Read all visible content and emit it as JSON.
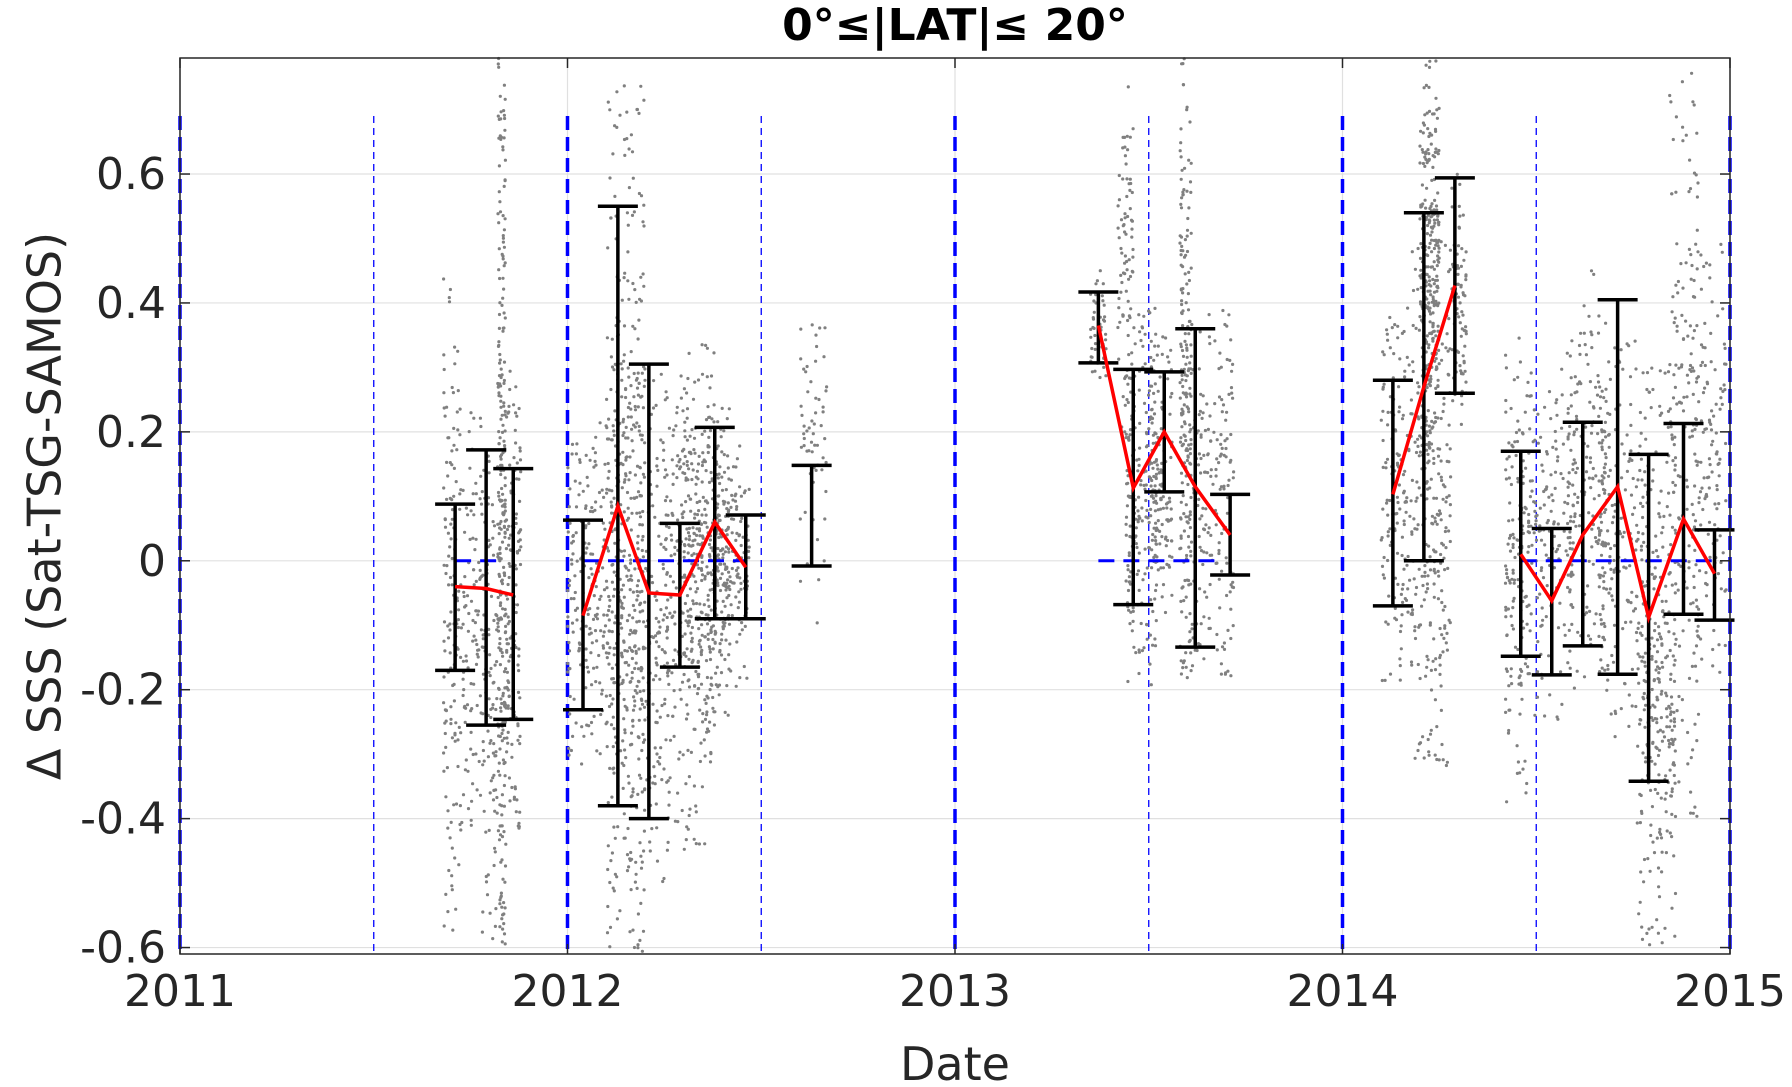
{
  "chart_data": {
    "type": "scatter",
    "title": "0°≤|LAT|≤ 20°",
    "xlabel": "Date",
    "ylabel": "Δ SSS (Sat-TSG-SAMOS)",
    "xlim": [
      2011,
      2015
    ],
    "ylim": [
      -0.61,
      0.78
    ],
    "x_ticks": [
      2011,
      2012,
      2013,
      2014,
      2015
    ],
    "x_tick_labels": [
      "2011",
      "2012",
      "2013",
      "2014",
      "2015"
    ],
    "y_ticks": [
      -0.6,
      -0.4,
      -0.2,
      0,
      0.2,
      0.4,
      0.6
    ],
    "y_tick_labels": [
      "-0.6",
      "-0.4",
      "-0.2",
      "0",
      "0.2",
      "0.4",
      "0.6"
    ],
    "grid": true,
    "colors": {
      "scatter": "#808080",
      "error_bars": "#000000",
      "mean_line": "#ff0000",
      "year_lines": "#0000ff",
      "zero_line": "#0000ff",
      "grid": "#e0e0e0",
      "axes": "#262626"
    },
    "year_boundaries": [
      2011,
      2012,
      2013,
      2014,
      2015
    ],
    "half_year_markers": [
      2011.5,
      2012.5,
      2013.5,
      2014.5
    ],
    "zero_reference_segments": [
      {
        "x0": 2011.71,
        "x1": 2011.83,
        "y": 0
      },
      {
        "x0": 2012.04,
        "x1": 2012.46,
        "y": 0
      },
      {
        "x0": 2013.37,
        "x1": 2013.67,
        "y": 0
      },
      {
        "x0": 2014.46,
        "x1": 2014.97,
        "y": 0
      }
    ],
    "scatter_bands": [
      {
        "x0": 2011.68,
        "x1": 2011.72,
        "ymin": -0.6,
        "ymax": 0.44,
        "density": 130
      },
      {
        "x0": 2011.72,
        "x1": 2011.78,
        "ymin": -0.42,
        "ymax": 0.25,
        "density": 110
      },
      {
        "x0": 2011.78,
        "x1": 2011.84,
        "ymin": -0.6,
        "ymax": 0.2,
        "density": 140
      },
      {
        "x0": 2011.82,
        "x1": 2011.84,
        "ymin": -0.6,
        "ymax": 0.78,
        "density": 220
      },
      {
        "x0": 2011.84,
        "x1": 2011.88,
        "ymin": -0.45,
        "ymax": 0.3,
        "density": 140
      },
      {
        "x0": 2012.0,
        "x1": 2012.14,
        "ymin": -0.32,
        "ymax": 0.22,
        "density": 240
      },
      {
        "x0": 2012.1,
        "x1": 2012.2,
        "ymin": -0.61,
        "ymax": 0.78,
        "density": 330
      },
      {
        "x0": 2012.14,
        "x1": 2012.26,
        "ymin": -0.5,
        "ymax": 0.3,
        "density": 260
      },
      {
        "x0": 2012.25,
        "x1": 2012.38,
        "ymin": -0.45,
        "ymax": 0.34,
        "density": 280
      },
      {
        "x0": 2012.3,
        "x1": 2012.42,
        "ymin": -0.25,
        "ymax": 0.29,
        "density": 260
      },
      {
        "x0": 2012.38,
        "x1": 2012.47,
        "ymin": -0.2,
        "ymax": 0.18,
        "density": 160
      },
      {
        "x0": 2012.6,
        "x1": 2012.67,
        "ymin": -0.1,
        "ymax": 0.4,
        "density": 60
      },
      {
        "x0": 2013.35,
        "x1": 2013.39,
        "ymin": 0.27,
        "ymax": 0.45,
        "density": 50
      },
      {
        "x0": 2013.42,
        "x1": 2013.46,
        "ymin": 0.2,
        "ymax": 0.74,
        "density": 80
      },
      {
        "x0": 2013.44,
        "x1": 2013.52,
        "ymin": -0.2,
        "ymax": 0.4,
        "density": 200
      },
      {
        "x0": 2013.5,
        "x1": 2013.56,
        "ymin": -0.1,
        "ymax": 0.35,
        "density": 130
      },
      {
        "x0": 2013.58,
        "x1": 2013.61,
        "ymin": -0.2,
        "ymax": 0.78,
        "density": 190
      },
      {
        "x0": 2013.6,
        "x1": 2013.72,
        "ymin": -0.18,
        "ymax": 0.4,
        "density": 200
      },
      {
        "x0": 2014.1,
        "x1": 2014.18,
        "ymin": -0.2,
        "ymax": 0.4,
        "density": 150
      },
      {
        "x0": 2014.18,
        "x1": 2014.28,
        "ymin": -0.32,
        "ymax": 0.5,
        "density": 260
      },
      {
        "x0": 2014.2,
        "x1": 2014.25,
        "ymin": 0.15,
        "ymax": 0.78,
        "density": 260
      },
      {
        "x0": 2014.28,
        "x1": 2014.32,
        "ymin": 0.2,
        "ymax": 0.6,
        "density": 80
      },
      {
        "x0": 2014.42,
        "x1": 2014.48,
        "ymin": -0.38,
        "ymax": 0.35,
        "density": 150
      },
      {
        "x0": 2014.48,
        "x1": 2014.6,
        "ymin": -0.25,
        "ymax": 0.3,
        "density": 170
      },
      {
        "x0": 2014.58,
        "x1": 2014.68,
        "ymin": -0.18,
        "ymax": 0.45,
        "density": 170
      },
      {
        "x0": 2014.66,
        "x1": 2014.76,
        "ymin": -0.3,
        "ymax": 0.35,
        "density": 160
      },
      {
        "x0": 2014.76,
        "x1": 2014.86,
        "ymin": -0.61,
        "ymax": 0.3,
        "density": 310
      },
      {
        "x0": 2014.84,
        "x1": 2014.92,
        "ymin": -0.4,
        "ymax": 0.78,
        "density": 170
      },
      {
        "x0": 2014.9,
        "x1": 2014.99,
        "ymin": -0.18,
        "ymax": 0.5,
        "density": 140
      }
    ],
    "error_bars": [
      {
        "x": 2011.71,
        "low": -0.17,
        "high": 0.088
      },
      {
        "x": 2011.79,
        "low": -0.255,
        "high": 0.172
      },
      {
        "x": 2011.86,
        "low": -0.246,
        "high": 0.143
      },
      {
        "x": 2012.04,
        "low": -0.231,
        "high": 0.063
      },
      {
        "x": 2012.13,
        "low": -0.38,
        "high": 0.55
      },
      {
        "x": 2012.21,
        "low": -0.4,
        "high": 0.305
      },
      {
        "x": 2012.29,
        "low": -0.165,
        "high": 0.058
      },
      {
        "x": 2012.38,
        "low": -0.09,
        "high": 0.207
      },
      {
        "x": 2012.46,
        "low": -0.09,
        "high": 0.071
      },
      {
        "x": 2012.63,
        "low": -0.008,
        "high": 0.148
      },
      {
        "x": 2013.37,
        "low": 0.307,
        "high": 0.417
      },
      {
        "x": 2013.46,
        "low": -0.068,
        "high": 0.297
      },
      {
        "x": 2013.54,
        "low": 0.107,
        "high": 0.293
      },
      {
        "x": 2013.62,
        "low": -0.134,
        "high": 0.36
      },
      {
        "x": 2013.71,
        "low": -0.022,
        "high": 0.103
      },
      {
        "x": 2014.13,
        "low": -0.07,
        "high": 0.28
      },
      {
        "x": 2014.21,
        "low": 0.0,
        "high": 0.54
      },
      {
        "x": 2014.29,
        "low": 0.26,
        "high": 0.594
      },
      {
        "x": 2014.46,
        "low": -0.148,
        "high": 0.17
      },
      {
        "x": 2014.54,
        "low": -0.177,
        "high": 0.05
      },
      {
        "x": 2014.62,
        "low": -0.132,
        "high": 0.215
      },
      {
        "x": 2014.71,
        "low": -0.176,
        "high": 0.405
      },
      {
        "x": 2014.79,
        "low": -0.342,
        "high": 0.165
      },
      {
        "x": 2014.88,
        "low": -0.083,
        "high": 0.213
      },
      {
        "x": 2014.96,
        "low": -0.092,
        "high": 0.048
      }
    ],
    "mean_series": [
      {
        "name": "",
        "points": [
          [
            2011.71,
            -0.04
          ],
          [
            2011.79,
            -0.043
          ],
          [
            2011.86,
            -0.053
          ]
        ]
      },
      {
        "name": "",
        "points": [
          [
            2012.04,
            -0.085
          ],
          [
            2012.13,
            0.085
          ],
          [
            2012.21,
            -0.05
          ],
          [
            2012.29,
            -0.053
          ],
          [
            2012.38,
            0.06
          ],
          [
            2012.46,
            -0.01
          ]
        ]
      },
      {
        "name": "",
        "points": [
          [
            2013.37,
            0.365
          ],
          [
            2013.46,
            0.113
          ],
          [
            2013.54,
            0.2
          ],
          [
            2013.62,
            0.115
          ],
          [
            2013.71,
            0.04
          ]
        ]
      },
      {
        "name": "",
        "points": [
          [
            2014.13,
            0.103
          ],
          [
            2014.21,
            0.27
          ],
          [
            2014.29,
            0.427
          ]
        ]
      },
      {
        "name": "",
        "points": [
          [
            2014.46,
            0.01
          ],
          [
            2014.54,
            -0.062
          ],
          [
            2014.62,
            0.04
          ],
          [
            2014.71,
            0.115
          ],
          [
            2014.79,
            -0.088
          ],
          [
            2014.88,
            0.065
          ],
          [
            2014.96,
            -0.02
          ]
        ]
      }
    ]
  }
}
